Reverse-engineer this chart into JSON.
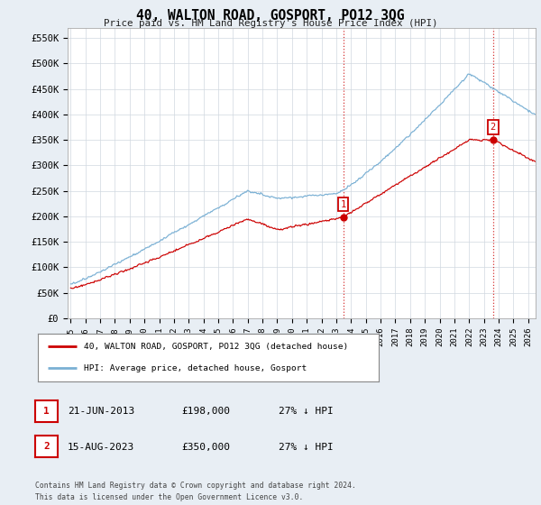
{
  "title": "40, WALTON ROAD, GOSPORT, PO12 3QG",
  "subtitle": "Price paid vs. HM Land Registry's House Price Index (HPI)",
  "ylabel_ticks": [
    "£0",
    "£50K",
    "£100K",
    "£150K",
    "£200K",
    "£250K",
    "£300K",
    "£350K",
    "£400K",
    "£450K",
    "£500K",
    "£550K"
  ],
  "ylabel_values": [
    0,
    50000,
    100000,
    150000,
    200000,
    250000,
    300000,
    350000,
    400000,
    450000,
    500000,
    550000
  ],
  "xlim": [
    1994.8,
    2026.5
  ],
  "ylim": [
    0,
    570000
  ],
  "hpi_color": "#7ab0d4",
  "price_color": "#cc0000",
  "marker1_date": 2013.47,
  "marker1_price": 198000,
  "marker2_date": 2023.62,
  "marker2_price": 350000,
  "legend_line1": "40, WALTON ROAD, GOSPORT, PO12 3QG (detached house)",
  "legend_line2": "HPI: Average price, detached house, Gosport",
  "table_row1": [
    "1",
    "21-JUN-2013",
    "£198,000",
    "27% ↓ HPI"
  ],
  "table_row2": [
    "2",
    "15-AUG-2023",
    "£350,000",
    "27% ↓ HPI"
  ],
  "footer": "Contains HM Land Registry data © Crown copyright and database right 2024.\nThis data is licensed under the Open Government Licence v3.0.",
  "background_color": "#e8eef4",
  "plot_bg_color": "#ffffff",
  "grid_color": "#d0d8e0"
}
